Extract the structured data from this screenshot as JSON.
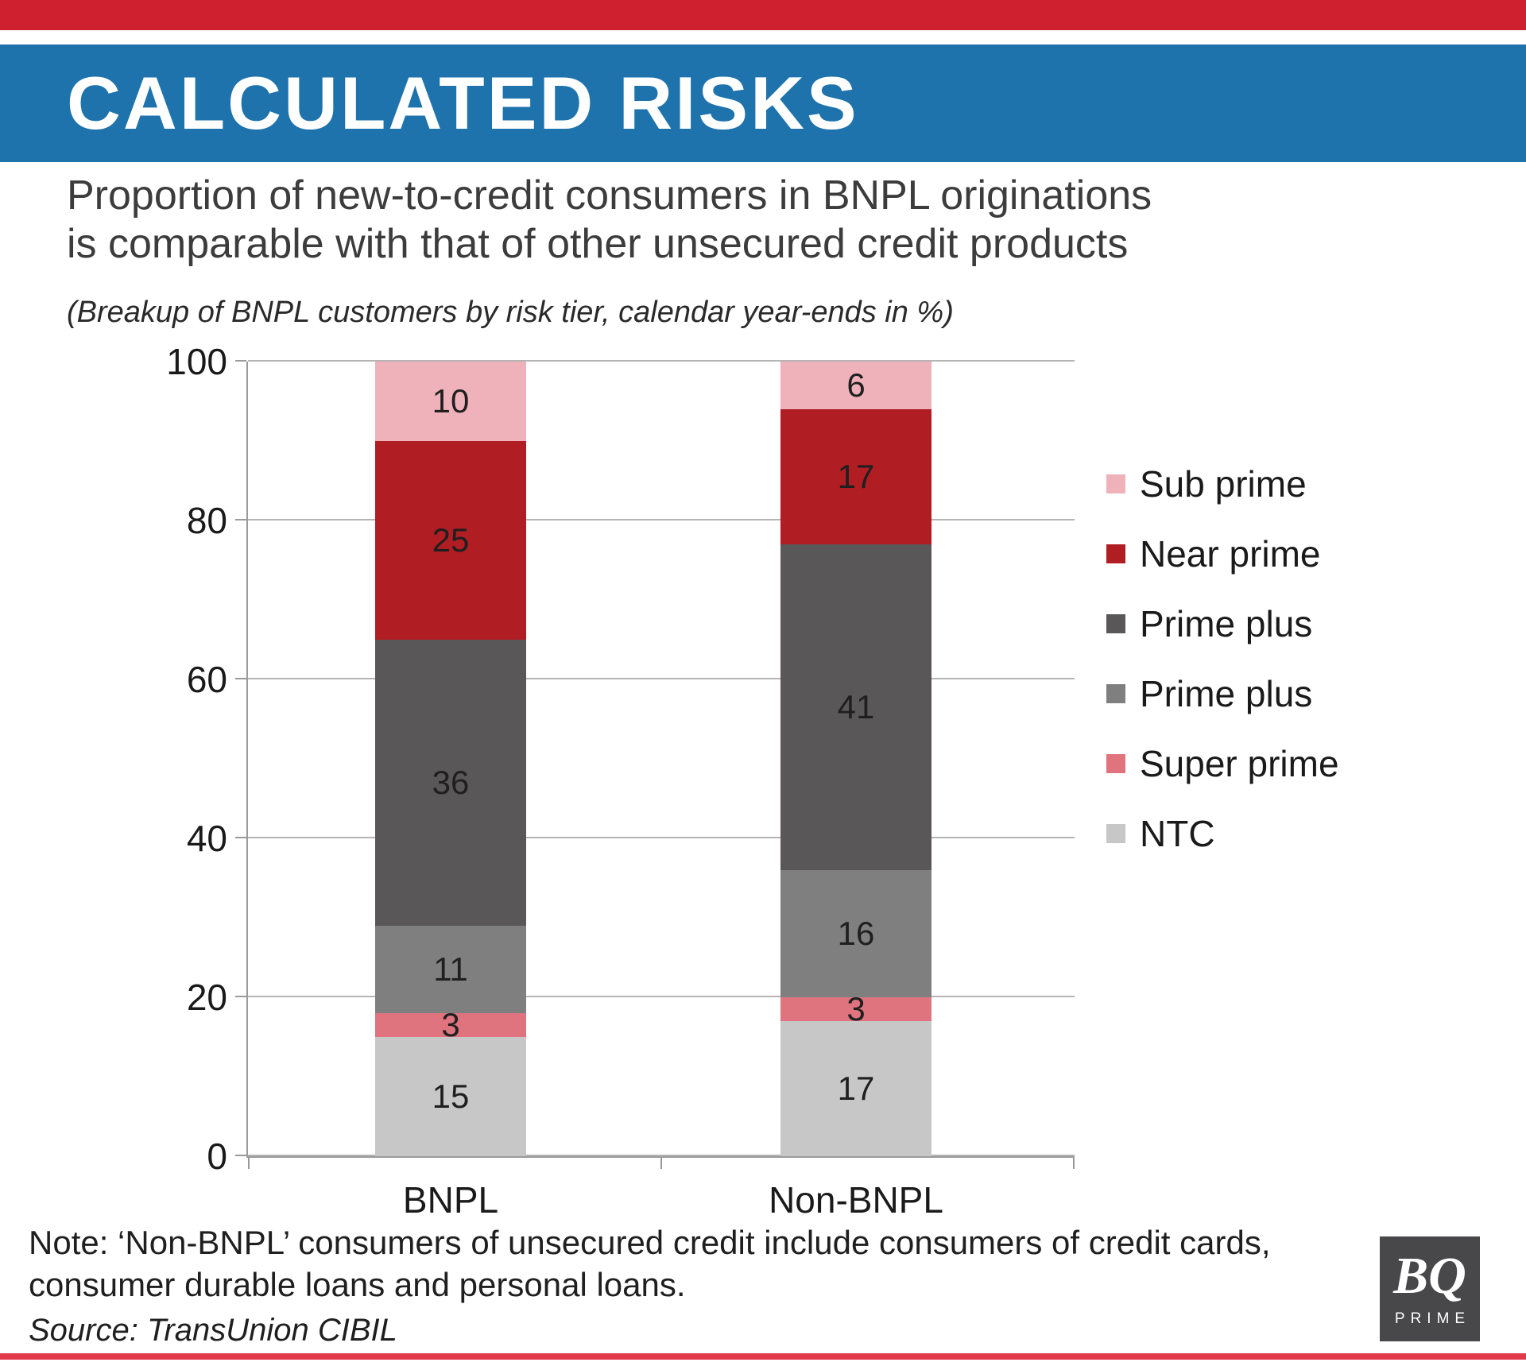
{
  "header": {
    "title": "CALCULATED RISKS"
  },
  "theme": {
    "accent_red": "#cf2030",
    "band_blue": "#1e73ad",
    "bottom_line_red": "#e13a4b",
    "logo_bg": "#48484a"
  },
  "subtitle": {
    "line1": "Proportion of new-to-credit consumers in BNPL originations",
    "line2": "is comparable with that of other unsecured credit products"
  },
  "caption": "(Breakup of BNPL customers by risk tier, calendar year-ends in %)",
  "chart_data": {
    "type": "bar",
    "stacked": true,
    "title": "(Breakup of BNPL customers by risk tier, calendar year-ends in %)",
    "xlabel": "",
    "ylabel": "",
    "ylim": [
      0,
      100
    ],
    "yticks": [
      0,
      20,
      40,
      60,
      80,
      100
    ],
    "grid": true,
    "legend_position": "right",
    "categories": [
      "BNPL",
      "Non-BNPL"
    ],
    "series": [
      {
        "name": "NTC",
        "color": "#c7c7c7",
        "values": [
          15,
          17
        ]
      },
      {
        "name": "Super prime",
        "color": "#df747e",
        "values": [
          3,
          3
        ]
      },
      {
        "name": "Prime plus",
        "color": "#7f7f7f",
        "values": [
          11,
          16
        ]
      },
      {
        "name": "Prime plus",
        "color": "#595757",
        "values": [
          36,
          41
        ]
      },
      {
        "name": "Near prime",
        "color": "#b01e24",
        "values": [
          25,
          17
        ]
      },
      {
        "name": "Sub prime",
        "color": "#efb2ba",
        "values": [
          10,
          6
        ]
      }
    ],
    "legend_order_top_to_bottom": [
      "Sub prime",
      "Near prime",
      "Prime plus",
      "Prime plus",
      "Super prime",
      "NTC"
    ]
  },
  "footer": {
    "note_line1": "Note: ‘Non-BNPL’ consumers of unsecured credit include consumers of credit cards,",
    "note_line2": "consumer durable loans and personal loans.",
    "source": "Source: TransUnion CIBIL",
    "logo": {
      "line1": "BQ",
      "line2": "PRIME"
    }
  }
}
